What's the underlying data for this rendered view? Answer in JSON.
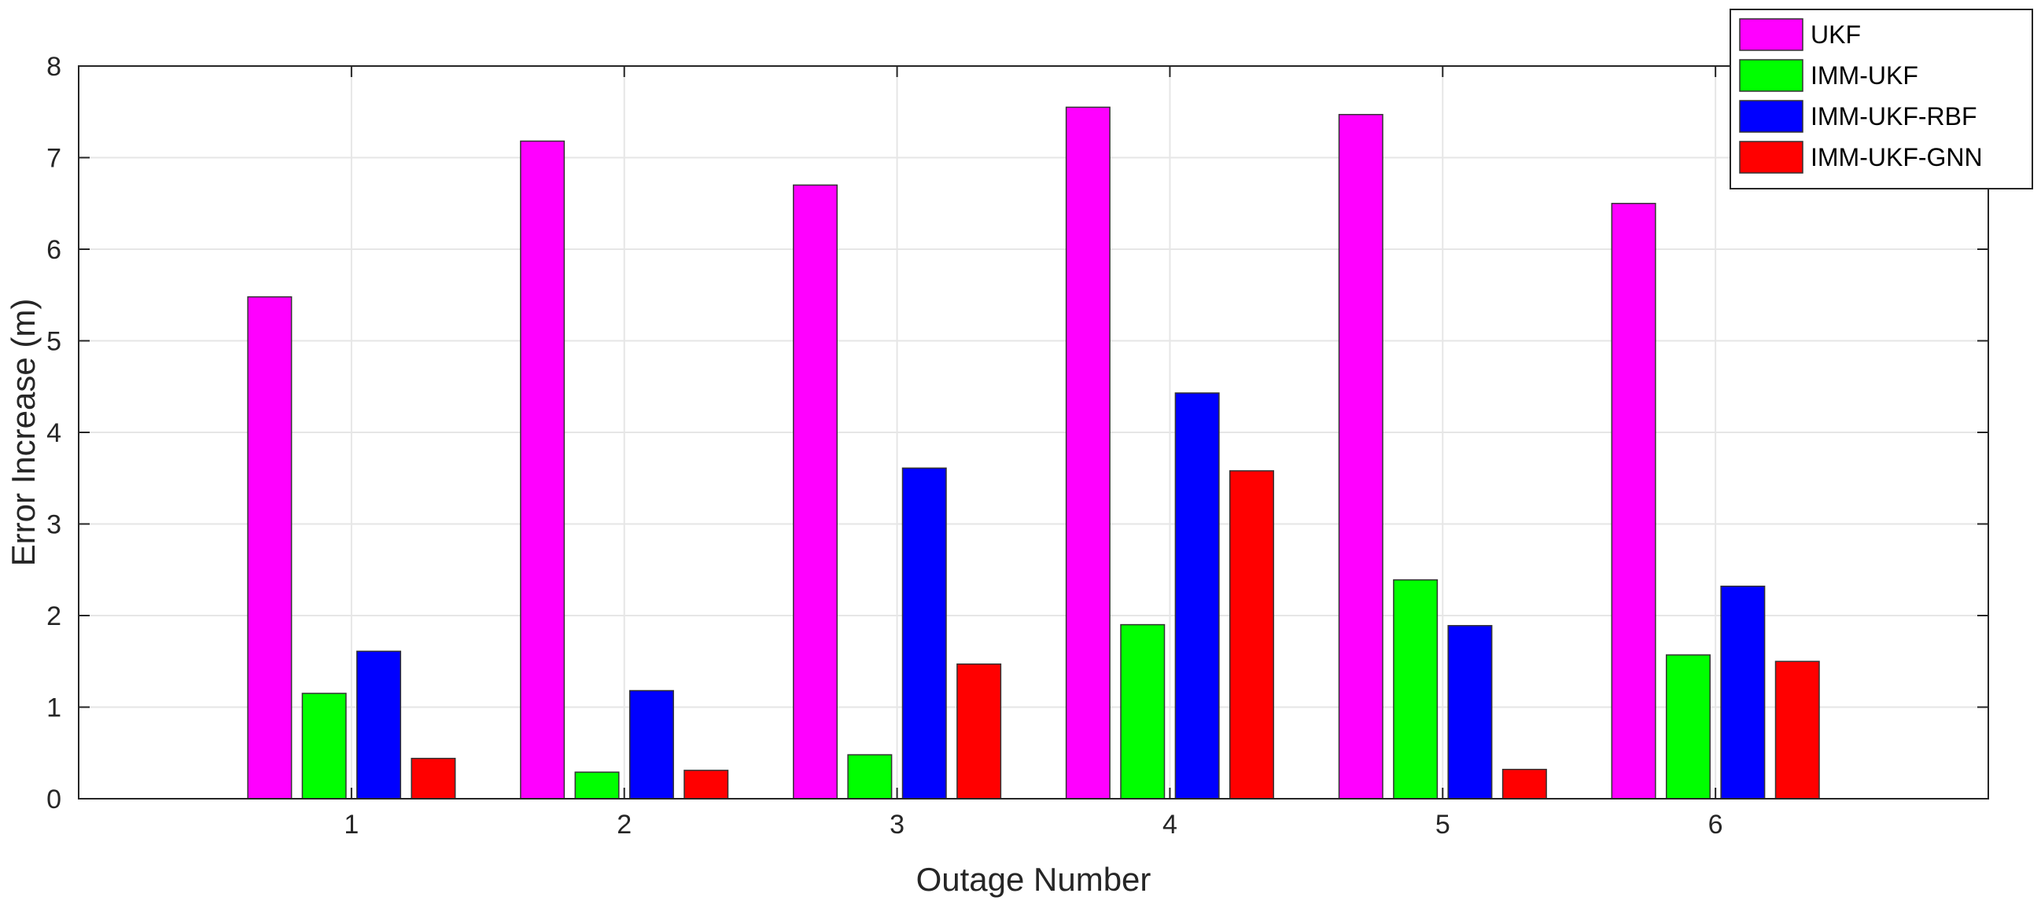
{
  "chart_data": {
    "type": "bar",
    "title": "",
    "xlabel": "Outage Number",
    "ylabel": "Error Increase (m)",
    "categories": [
      "1",
      "2",
      "3",
      "4",
      "5",
      "6"
    ],
    "ylim": [
      0,
      8
    ],
    "yticks": [
      "0",
      "1",
      "2",
      "3",
      "4",
      "5",
      "6",
      "7",
      "8"
    ],
    "grid": true,
    "legend_position": "top-right",
    "series": [
      {
        "name": "UKF",
        "color": "#ff00ff",
        "values": [
          5.48,
          7.18,
          6.7,
          7.55,
          7.47,
          6.5
        ]
      },
      {
        "name": "IMM-UKF",
        "color": "#00ff00",
        "values": [
          1.15,
          0.29,
          0.48,
          1.9,
          2.39,
          1.57
        ]
      },
      {
        "name": "IMM-UKF-RBF",
        "color": "#0000ff",
        "values": [
          1.61,
          1.18,
          3.61,
          4.43,
          1.89,
          2.32
        ]
      },
      {
        "name": "IMM-UKF-GNN",
        "color": "#ff0000",
        "values": [
          0.44,
          0.31,
          1.47,
          3.58,
          0.32,
          1.5
        ]
      }
    ]
  }
}
